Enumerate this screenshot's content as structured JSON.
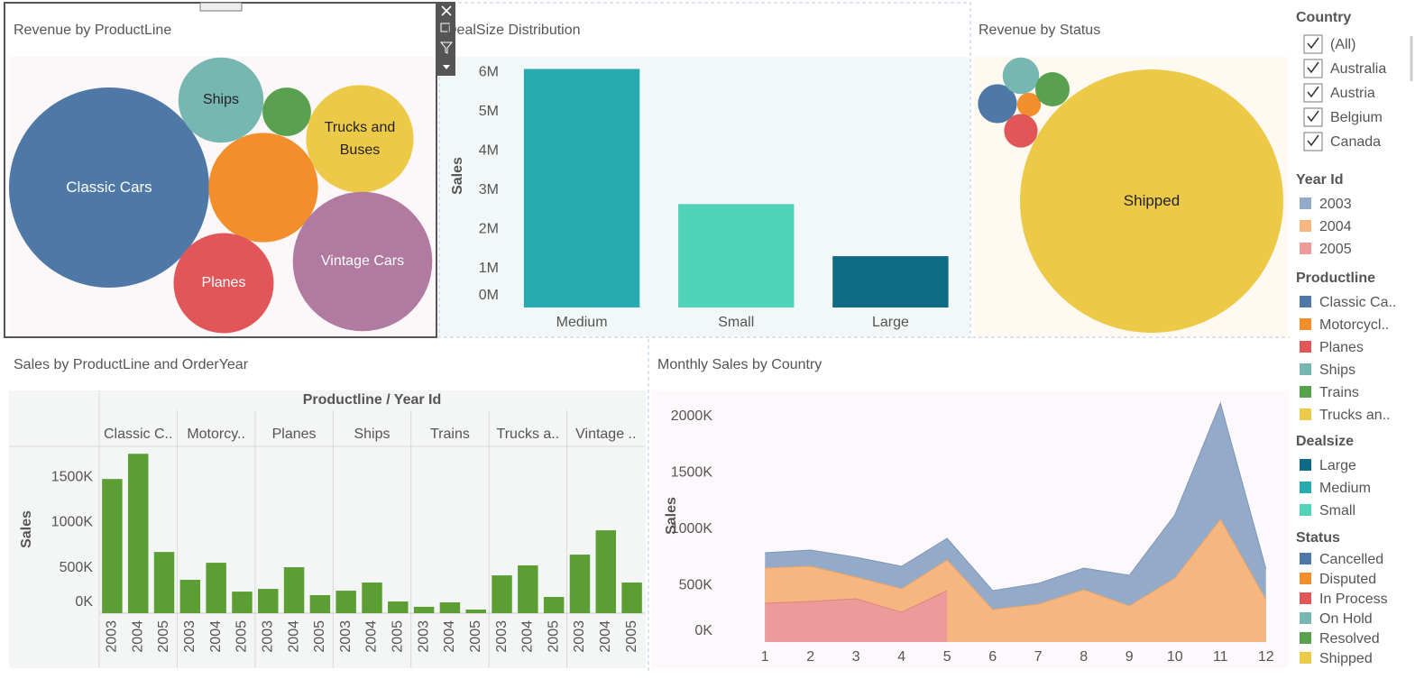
{
  "chart_data": [
    {
      "type": "bubble",
      "title": "Revenue by ProductLine",
      "categories": [
        "Classic Cars",
        "Ships",
        null,
        "Trucks and Buses",
        null,
        "Planes",
        "Vintage Cars"
      ],
      "values": [
        3920000,
        710000,
        230000,
        1130000,
        1170000,
        980000,
        1900000
      ],
      "colors": [
        "#4e79a7",
        "#76b7b2",
        "#59a14f",
        "#edc948",
        "#f28e2b",
        "#e15759",
        "#b07aa1"
      ],
      "label_colors": [
        "#ffffff",
        "#222222",
        "#ffffff",
        "#222222",
        "#ffffff",
        "#ffffff",
        "#ffffff"
      ]
    },
    {
      "type": "bar",
      "title": "DealSize Distribution",
      "ylabel": "Sales",
      "categories": [
        "Medium",
        "Small",
        "Large"
      ],
      "values": [
        6090000,
        2640000,
        1310000
      ],
      "colors": [
        "#27aab0",
        "#51d3b9",
        "#0f6b85"
      ],
      "ylim": [
        0,
        6400000
      ],
      "yticks": [
        {
          "value": 0,
          "label": "0M"
        },
        {
          "value": 1000000,
          "label": "1M"
        },
        {
          "value": 2000000,
          "label": "2M"
        },
        {
          "value": 3000000,
          "label": "3M"
        },
        {
          "value": 4000000,
          "label": "4M"
        },
        {
          "value": 5000000,
          "label": "5M"
        },
        {
          "value": 6000000,
          "label": "6M"
        }
      ]
    },
    {
      "type": "bubble",
      "title": "Revenue by Status",
      "categories": [
        "Shipped",
        null,
        null,
        null,
        null,
        null
      ],
      "values": [
        8850000,
        194000,
        72000,
        144000,
        170000,
        150000
      ],
      "colors": [
        "#edc948",
        "#4e79a7",
        "#f28e2b",
        "#e15759",
        "#76b7b2",
        "#59a14f"
      ],
      "label_colors": [
        "#222222",
        "#ffffff",
        "#ffffff",
        "#ffffff",
        "#ffffff",
        "#ffffff"
      ]
    },
    {
      "type": "grouped-bar",
      "title": "Sales by ProductLine and OrderYear",
      "header": "Productline  /  Year Id",
      "ylabel": "Sales",
      "categories": [
        "Classic C..",
        "Motorcy..",
        "Planes",
        "Ships",
        "Trains",
        "Trucks a..",
        "Vintage .."
      ],
      "series": [
        {
          "name": "2003",
          "color": "#5b9e33",
          "values": [
            1480000,
            368000,
            268000,
            248000,
            70000,
            417000,
            646000
          ]
        },
        {
          "name": "2004",
          "color": "#5b9e33",
          "values": [
            1758000,
            556000,
            507000,
            338000,
            119000,
            527000,
            914000
          ]
        },
        {
          "name": "2005",
          "color": "#5b9e33",
          "values": [
            675000,
            238000,
            199000,
            129000,
            40000,
            179000,
            338000
          ]
        }
      ],
      "ylim": [
        0,
        1840000
      ],
      "yticks": [
        {
          "value": 0,
          "label": "0K"
        },
        {
          "value": 500000,
          "label": "500K"
        },
        {
          "value": 1000000,
          "label": "1000K"
        },
        {
          "value": 1500000,
          "label": "1500K"
        }
      ]
    },
    {
      "type": "stacked-area",
      "title": "Monthly Sales by Country",
      "ylabel": "Sales",
      "x": [
        1,
        2,
        3,
        4,
        5,
        6,
        7,
        8,
        9,
        10,
        11,
        12
      ],
      "series": [
        {
          "name": "2003",
          "color": "#93aac9",
          "values": [
            136000,
            144000,
            176000,
            200000,
            192000,
            168000,
            184000,
            192000,
            272000,
            560000,
            1032000,
            272000
          ]
        },
        {
          "name": "2004",
          "color": "#f5b67f",
          "values": [
            312000,
            312000,
            192000,
            208000,
            272000,
            288000,
            336000,
            464000,
            320000,
            568000,
            1088000,
            376000
          ]
        },
        {
          "name": "2005",
          "color": "#ec9a9a",
          "values": [
            344000,
            360000,
            384000,
            264000,
            456000,
            null,
            null,
            null,
            null,
            null,
            null,
            null
          ]
        }
      ],
      "xlim": [
        0.5,
        12.5
      ],
      "xticks": [
        1,
        2,
        3,
        4,
        5,
        6,
        7,
        8,
        9,
        10,
        11,
        12
      ],
      "ylim": [
        0,
        2200000
      ],
      "yticks": [
        {
          "value": 0,
          "label": "0K"
        },
        {
          "value": 500000,
          "label": "500K"
        },
        {
          "value": 1000000,
          "label": "1000K"
        },
        {
          "value": 1500000,
          "label": "1500K"
        },
        {
          "value": 2000000,
          "label": "2000K"
        }
      ]
    }
  ],
  "filter": {
    "title": "Country",
    "items": [
      "(All)",
      "Australia",
      "Austria",
      "Belgium",
      "Canada"
    ]
  },
  "legends": [
    {
      "title": "Year Id",
      "items": [
        {
          "label": "2003",
          "color": "#93aac9"
        },
        {
          "label": "2004",
          "color": "#f5b67f"
        },
        {
          "label": "2005",
          "color": "#ec9a9a"
        }
      ]
    },
    {
      "title": "Productline",
      "items": [
        {
          "label": "Classic Ca..",
          "color": "#4e79a7"
        },
        {
          "label": "Motorcycl..",
          "color": "#f28e2b"
        },
        {
          "label": "Planes",
          "color": "#e15759"
        },
        {
          "label": "Ships",
          "color": "#76b7b2"
        },
        {
          "label": "Trains",
          "color": "#59a14f"
        },
        {
          "label": "Trucks an..",
          "color": "#edc948"
        }
      ]
    },
    {
      "title": "Dealsize",
      "items": [
        {
          "label": "Large",
          "color": "#0f6b85"
        },
        {
          "label": "Medium",
          "color": "#27aab0"
        },
        {
          "label": "Small",
          "color": "#51d3b9"
        }
      ]
    },
    {
      "title": "Status",
      "items": [
        {
          "label": "Cancelled",
          "color": "#4e79a7"
        },
        {
          "label": "Disputed",
          "color": "#f28e2b"
        },
        {
          "label": "In Process",
          "color": "#e15759"
        },
        {
          "label": "On Hold",
          "color": "#76b7b2"
        },
        {
          "label": "Resolved",
          "color": "#59a14f"
        },
        {
          "label": "Shipped",
          "color": "#edc948"
        }
      ]
    }
  ]
}
